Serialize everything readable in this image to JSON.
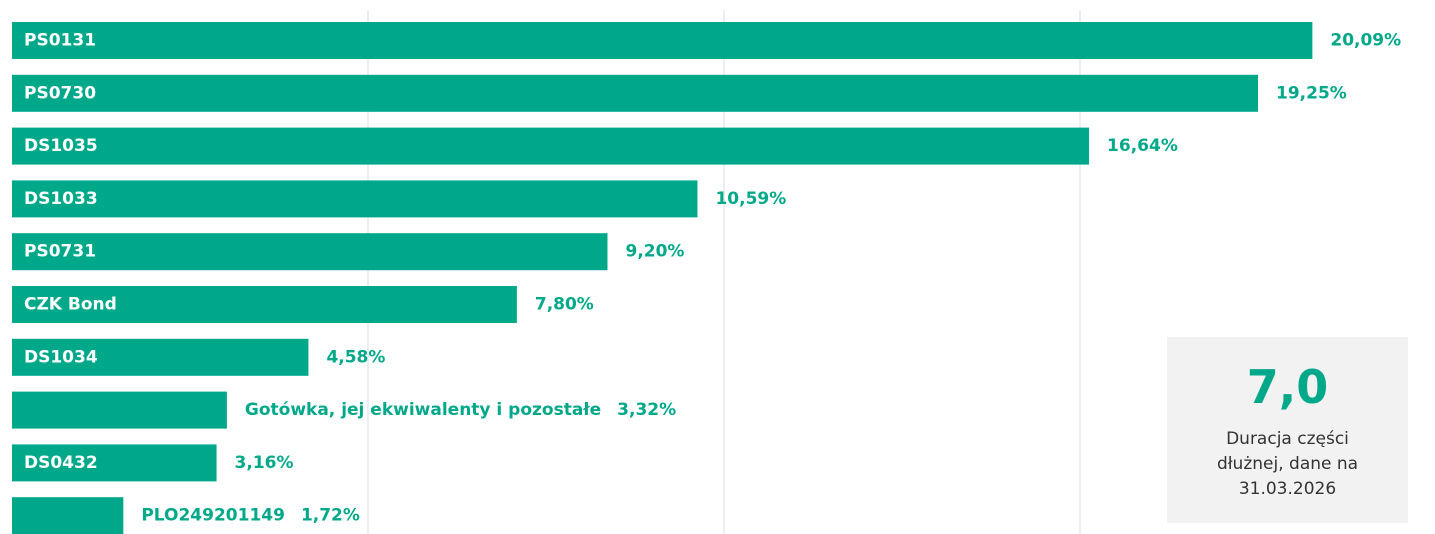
{
  "chart_data": {
    "type": "barh",
    "categories": [
      "PS0131",
      "PS0730",
      "DS1035",
      "DS1033",
      "PS0731",
      "CZK Bond",
      "DS1034",
      "Gotówka, jej ekwiwalenty i pozostałe",
      "DS0432",
      "PLO249201149"
    ],
    "values": [
      20.09,
      19.25,
      16.64,
      10.59,
      9.2,
      7.8,
      4.58,
      3.32,
      3.16,
      1.72
    ],
    "value_labels": [
      "20,09%",
      "19,25%",
      "16,64%",
      "10,59%",
      "9,20%",
      "7,80%",
      "4,58%",
      "3,32%",
      "3,16%",
      "1,72%"
    ],
    "color": "#00a88a",
    "xlim": [
      0,
      22
    ],
    "xticks": [
      5.5,
      11,
      16.5
    ],
    "grid": true,
    "annotation": {
      "value": "7,0",
      "text": "Duracja części dłużnej, dane na 31.03.2026"
    }
  }
}
